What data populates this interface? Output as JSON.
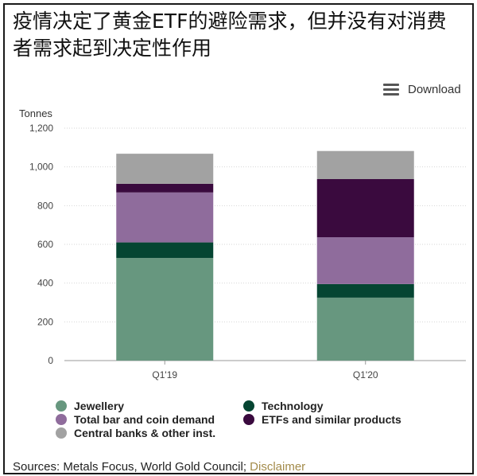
{
  "headline": "疫情决定了黄金ETF的避险需求，但并没有对消费者需求起到决定性作用",
  "download_label": "Download",
  "sources_text": "Sources: Metals Focus, World Gold Council; ",
  "disclaimer_label": "Disclaimer",
  "colors": {
    "jewellery": "#67977f",
    "technology": "#054532",
    "bar_coin": "#8f6c9c",
    "etf": "#3a0a3e",
    "central_banks": "#a2a2a2",
    "disclaimer": "#a38b4a"
  },
  "chart_data": {
    "type": "bar",
    "stacked": true,
    "ylabel": "Tonnes",
    "ylim": [
      0,
      1200
    ],
    "yticks": [
      "0",
      "200",
      "400",
      "600",
      "800",
      "1,000",
      "1,200"
    ],
    "categories": [
      "Q1'19",
      "Q1'20"
    ],
    "series": [
      {
        "name": "Jewellery",
        "color": "#67977f",
        "values": [
          530,
          325
        ]
      },
      {
        "name": "Technology",
        "color": "#054532",
        "values": [
          80,
          70
        ]
      },
      {
        "name": "Total bar and coin demand",
        "color": "#8f6c9c",
        "values": [
          258,
          242
        ]
      },
      {
        "name": "ETFs and similar products",
        "color": "#3a0a3e",
        "values": [
          45,
          300
        ]
      },
      {
        "name": "Central banks & other inst.",
        "color": "#a2a2a2",
        "values": [
          155,
          145
        ]
      }
    ],
    "legend_position": "bottom",
    "grid": true
  }
}
